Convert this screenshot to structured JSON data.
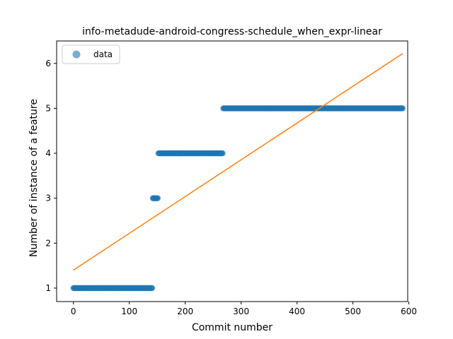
{
  "chart_data": {
    "type": "scatter",
    "title": "info-metadude-android-congress-schedule_when_expr-linear",
    "xlabel": "Commit number",
    "ylabel": "Number of instance of a feature",
    "xlim": [
      -30,
      598
    ],
    "ylim": [
      0.7,
      6.5
    ],
    "xticks": [
      0,
      100,
      200,
      300,
      400,
      500,
      600
    ],
    "yticks": [
      1,
      2,
      3,
      4,
      5,
      6
    ],
    "grid": false,
    "legend": {
      "position": "top-left",
      "entries": [
        "data"
      ]
    },
    "colors": {
      "points": "#1f77b4",
      "fit_line": "#ff7f0e"
    },
    "series": [
      {
        "name": "data",
        "kind": "scatter",
        "segments": [
          {
            "x_start": 0,
            "x_end": 141,
            "y": 1
          },
          {
            "x_start": 142,
            "x_end": 151,
            "y": 3
          },
          {
            "x_start": 152,
            "x_end": 267,
            "y": 4
          },
          {
            "x_start": 268,
            "x_end": 589,
            "y": 5
          }
        ]
      },
      {
        "kind": "line",
        "x": [
          0,
          589
        ],
        "y": [
          1.4,
          6.22
        ]
      }
    ]
  }
}
